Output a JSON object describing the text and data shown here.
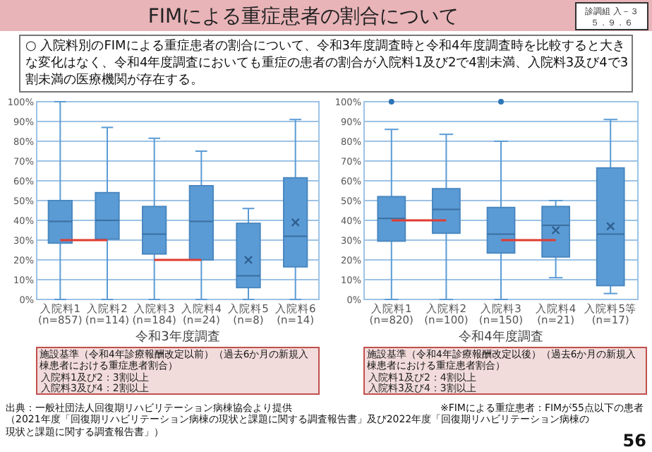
{
  "chart_data": [
    {
      "type": "box",
      "title": "FIMによる重症患者の割合について",
      "subtitle": "○ 入院料別のFIMによる重症患者の割合について、令和3年度調査時と令和4年度調査時を比較すると大きな変化はなく、令和4年度調査においても重症の患者の割合が入院料1及び2で4割未満、入院料3及び4で3割未満の医療機関が存在する。",
      "xlabel": "令和3年度調査",
      "categories": [
        "入院料1(n=857)",
        "入院料2(n=114)",
        "入院料3(n=184)",
        "入院料4(n=24)",
        "入院料5(n=8)",
        "入院料6(n=14)"
      ],
      "ylim": [
        0,
        100
      ],
      "yticks": [
        {
          "value": 0,
          "label": "0%"
        },
        {
          "value": 10,
          "label": "10%"
        },
        {
          "value": 20,
          "label": "20%"
        },
        {
          "value": 30,
          "label": "30%"
        },
        {
          "value": 40,
          "label": "40%"
        },
        {
          "value": 50,
          "label": "50%"
        },
        {
          "value": 60,
          "label": "60%"
        },
        {
          "value": 70,
          "label": "70%"
        },
        {
          "value": 80,
          "label": "80%"
        },
        {
          "value": 90,
          "label": "90%"
        },
        {
          "value": 100,
          "label": "100%"
        }
      ],
      "grid": "y",
      "series": [
        {
          "type": "box",
          "color": "#5b9bd5",
          "boxes": [
            {
              "low": 0,
              "q1": 28.5,
              "median": 39.5,
              "q3": 50,
              "high": 100
            },
            {
              "low": 0,
              "q1": 30.5,
              "median": 40,
              "q3": 54,
              "high": 87
            },
            {
              "low": 0,
              "q1": 23,
              "median": 33,
              "q3": 47,
              "high": 81.5
            },
            {
              "low": 0,
              "q1": 20,
              "median": 39.5,
              "q3": 57.5,
              "high": 75
            },
            {
              "low": 0,
              "q1": 6,
              "median": 12,
              "q3": 38.5,
              "high": 46,
              "mean": 20
            },
            {
              "low": 0,
              "q1": 16.5,
              "median": 32,
              "q3": 61.5,
              "high": 91,
              "mean": 39
            }
          ]
        },
        {
          "type": "line",
          "color": "#e03c31",
          "x": [
            "入院料1(n=857)",
            "入院料2(n=114)"
          ],
          "values": [
            30,
            30
          ]
        },
        {
          "type": "line",
          "color": "#e03c31",
          "x": [
            "入院料3(n=184)",
            "入院料4(n=24)"
          ],
          "values": [
            20,
            20
          ]
        }
      ],
      "annotations": [
        "施設基準（令和4年診療報酬改定以前）（過去6か月の新規入棟患者における重症患者割合）",
        "入院料1及び2：3割以上",
        "入院料3及び4：2割以上",
        "診調組 入－３",
        "５．９．６",
        "出典：一般社団法人回復期リハビリテーション病棟協会より提供",
        "（2021年度「回復期リハビリテーション病棟の現状と課題に関する調査報告書」及び2022年度「回復期リハビリテーション病棟の現状と課題に関する調査報告書」）",
        "56"
      ]
    },
    {
      "type": "box",
      "xlabel": "令和4年度調査",
      "categories": [
        "入院料1(n=820)",
        "入院料2(n=100)",
        "入院料3(n=150)",
        "入院料4(n=21)",
        "入院料5等(n=17)"
      ],
      "ylim": [
        0,
        100
      ],
      "yticks": [
        {
          "value": 0,
          "label": "0%"
        },
        {
          "value": 10,
          "label": "10%"
        },
        {
          "value": 20,
          "label": "20%"
        },
        {
          "value": 30,
          "label": "30%"
        },
        {
          "value": 40,
          "label": "40%"
        },
        {
          "value": 50,
          "label": "50%"
        },
        {
          "value": 60,
          "label": "60%"
        },
        {
          "value": 70,
          "label": "70%"
        },
        {
          "value": 80,
          "label": "80%"
        },
        {
          "value": 90,
          "label": "90%"
        },
        {
          "value": 100,
          "label": "100%"
        }
      ],
      "grid": "y",
      "series": [
        {
          "type": "box",
          "color": "#5b9bd5",
          "boxes": [
            {
              "low": 0,
              "q1": 29.5,
              "median": 41,
              "q3": 52,
              "high": 86,
              "outliers": [
                100
              ]
            },
            {
              "low": 0,
              "q1": 33.5,
              "median": 45.5,
              "q3": 56,
              "high": 83.5
            },
            {
              "low": 0,
              "q1": 23.5,
              "median": 33,
              "q3": 46.5,
              "high": 80,
              "outliers": [
                100
              ]
            },
            {
              "low": 11,
              "q1": 21.5,
              "median": 37.5,
              "q3": 47,
              "high": 50,
              "mean": 35
            },
            {
              "low": 3,
              "q1": 7,
              "median": 33,
              "q3": 66.5,
              "high": 91,
              "mean": 37
            }
          ]
        },
        {
          "type": "line",
          "color": "#e03c31",
          "x": [
            "入院料1(n=820)",
            "入院料2(n=100)"
          ],
          "values": [
            40,
            40
          ]
        },
        {
          "type": "line",
          "color": "#e03c31",
          "x": [
            "入院料3(n=150)",
            "入院料4(n=21)"
          ],
          "values": [
            30,
            30
          ]
        }
      ],
      "annotations": [
        "施設基準（令和4年診療報酬改定以後）（過去6か月の新規入棟患者における重症患者割合）",
        "入院料1及び2：4割以上",
        "入院料3及び4：3割以上",
        "※FIMによる重症患者：FIMが55点以下の患者"
      ]
    }
  ]
}
